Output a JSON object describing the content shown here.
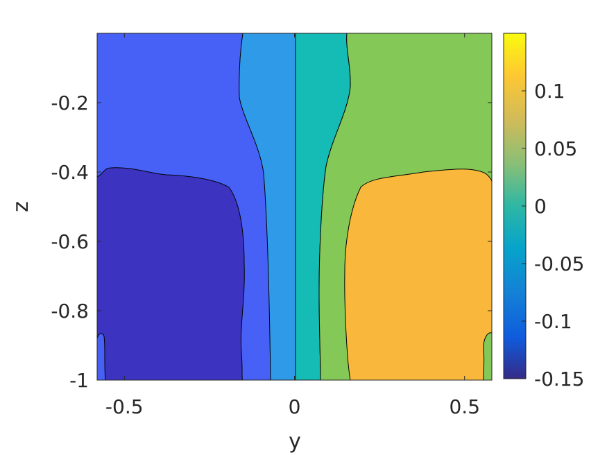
{
  "chart_data": {
    "type": "heatmap",
    "subtype": "filled-contour",
    "title": "",
    "xlabel": "y",
    "ylabel": "z",
    "xlim": [
      -0.58,
      0.58
    ],
    "ylim": [
      -1.0,
      0.0
    ],
    "x_ticks": [
      -0.5,
      0,
      0.5
    ],
    "x_tick_labels": [
      "-0.5",
      "0",
      "0.5"
    ],
    "y_ticks": [
      -0.2,
      -0.4,
      -0.6,
      -0.8,
      -1
    ],
    "y_tick_labels": [
      "-0.2",
      "-0.4",
      "-0.6",
      "-0.8",
      "-1"
    ],
    "colorbar": {
      "colormap": "parula",
      "limits": [
        -0.15,
        0.15
      ],
      "ticks": [
        0.1,
        0.05,
        0,
        -0.05,
        -0.1,
        -0.15
      ],
      "tick_labels": [
        "0.1",
        "0.05",
        "0",
        "-0.05",
        "-0.1",
        "-0.15"
      ]
    },
    "contour_levels": [
      -0.15,
      -0.1,
      -0.05,
      0,
      0.05,
      0.1,
      0.15
    ],
    "regions": [
      {
        "level_range": [
          -0.15,
          -0.1
        ],
        "color": "#4760f5"
      },
      {
        "level_range": [
          -0.1,
          -0.05
        ],
        "color": "#2f9ae8"
      },
      {
        "level_range": [
          -0.05,
          0
        ],
        "color": "#15bbb5"
      },
      {
        "level_range": [
          0,
          0.05
        ],
        "color": "#84c957"
      },
      {
        "level_range": [
          0.05,
          0.1
        ],
        "color": "#f9b83c"
      },
      {
        "level_range": [
          -0.2,
          -0.15
        ],
        "color": "#3d33c1"
      }
    ],
    "grid": false,
    "legend": "none"
  }
}
